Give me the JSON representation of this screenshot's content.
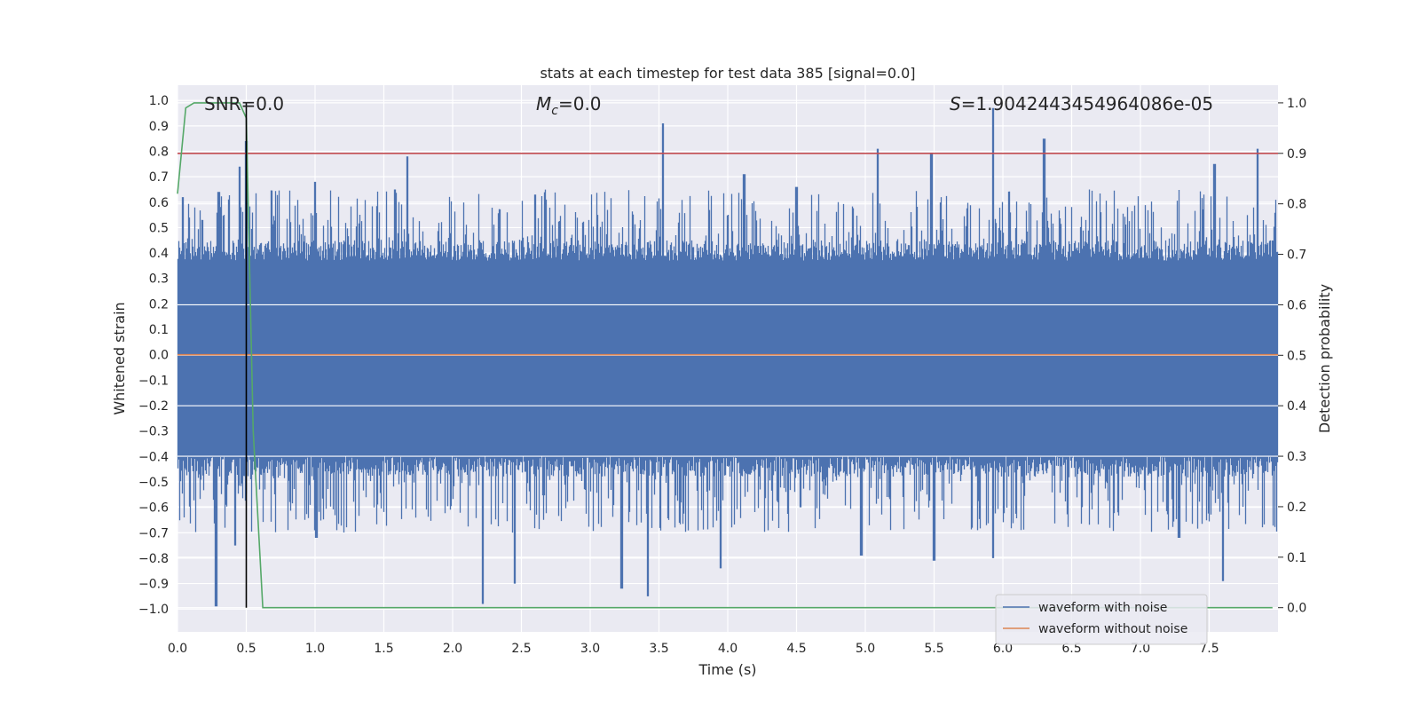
{
  "chart_data": {
    "type": "line",
    "title": "stats at each timestep for test data 385 [signal=0.0]",
    "xlabel": "Time (s)",
    "ylabel_left": "Whitened strain",
    "ylabel_right": "Detection probability",
    "xlim": [
      0.0,
      8.0
    ],
    "ylim_left": [
      -1.09,
      1.06
    ],
    "ylim_right": [
      -0.048,
      1.035
    ],
    "x_ticks": [
      "0.0",
      "0.5",
      "1.0",
      "1.5",
      "2.0",
      "2.5",
      "3.0",
      "3.5",
      "4.0",
      "4.5",
      "5.0",
      "5.5",
      "6.0",
      "6.5",
      "7.0",
      "7.5"
    ],
    "y_left_ticks": [
      "1.0",
      "0.9",
      "0.8",
      "0.7",
      "0.6",
      "0.5",
      "0.4",
      "0.3",
      "0.2",
      "0.1",
      "0.0",
      "−0.1",
      "−0.2",
      "−0.3",
      "−0.4",
      "−0.5",
      "−0.6",
      "−0.7",
      "−0.8",
      "−0.9",
      "−1.0"
    ],
    "y_right_ticks": [
      "1.0",
      "0.9",
      "0.8",
      "0.7",
      "0.6",
      "0.5",
      "0.4",
      "0.3",
      "0.2",
      "0.1",
      "0.0"
    ],
    "annotations": {
      "snr": "SNR=0.0",
      "mc_symbol": "M",
      "mc_sub": "c",
      "mc_value": "=0.0",
      "s_symbol": "S",
      "s_value": "=1.9042443454964086e-05"
    },
    "marker_time": 0.5,
    "threshold_probability": 0.9,
    "series": [
      {
        "name": "waveform with noise",
        "axis": "left",
        "color": "#4c72b0",
        "description_envelope": {
          "core_range": [
            -0.4,
            0.37
          ],
          "peaks_up": [
            [
              0.04,
              0.62
            ],
            [
              0.18,
              0.53
            ],
            [
              0.3,
              0.64
            ],
            [
              0.45,
              0.74
            ],
            [
              0.5,
              0.84
            ],
            [
              1.0,
              0.68
            ],
            [
              1.58,
              0.65
            ],
            [
              1.67,
              0.78
            ],
            [
              2.6,
              0.63
            ],
            [
              3.05,
              0.55
            ],
            [
              3.53,
              0.91
            ],
            [
              4.12,
              0.71
            ],
            [
              4.5,
              0.66
            ],
            [
              5.09,
              0.81
            ],
            [
              5.48,
              0.79
            ],
            [
              5.93,
              0.97
            ],
            [
              6.3,
              0.85
            ],
            [
              7.54,
              0.75
            ],
            [
              7.85,
              0.81
            ]
          ],
          "peaks_down": [
            [
              0.28,
              -0.99
            ],
            [
              0.42,
              -0.75
            ],
            [
              1.01,
              -0.72
            ],
            [
              2.22,
              -0.98
            ],
            [
              2.45,
              -0.9
            ],
            [
              3.23,
              -0.92
            ],
            [
              3.42,
              -0.95
            ],
            [
              3.95,
              -0.84
            ],
            [
              4.53,
              -0.6
            ],
            [
              4.97,
              -0.79
            ],
            [
              5.5,
              -0.81
            ],
            [
              5.93,
              -0.8
            ],
            [
              7.28,
              -0.72
            ],
            [
              7.6,
              -0.89
            ]
          ]
        }
      },
      {
        "name": "waveform without noise",
        "axis": "left",
        "color": "#dd8452",
        "x": [
          0.0,
          8.0
        ],
        "y": [
          0.0,
          0.0
        ]
      },
      {
        "name": "",
        "axis": "right",
        "color": "#55a868",
        "x": [
          0.0,
          0.06,
          0.12,
          0.45,
          0.5,
          0.55,
          0.62,
          7.96
        ],
        "y": [
          0.82,
          0.99,
          1.0,
          1.0,
          0.97,
          0.35,
          0.0,
          0.0
        ]
      },
      {
        "name": "",
        "axis": "right",
        "color": "#c44e52",
        "x": [
          0.0,
          8.0
        ],
        "y": [
          0.9,
          0.9
        ]
      }
    ],
    "legend": {
      "placement": "lower-right",
      "entries": [
        "waveform with noise",
        "waveform without noise"
      ]
    },
    "grid": true
  }
}
